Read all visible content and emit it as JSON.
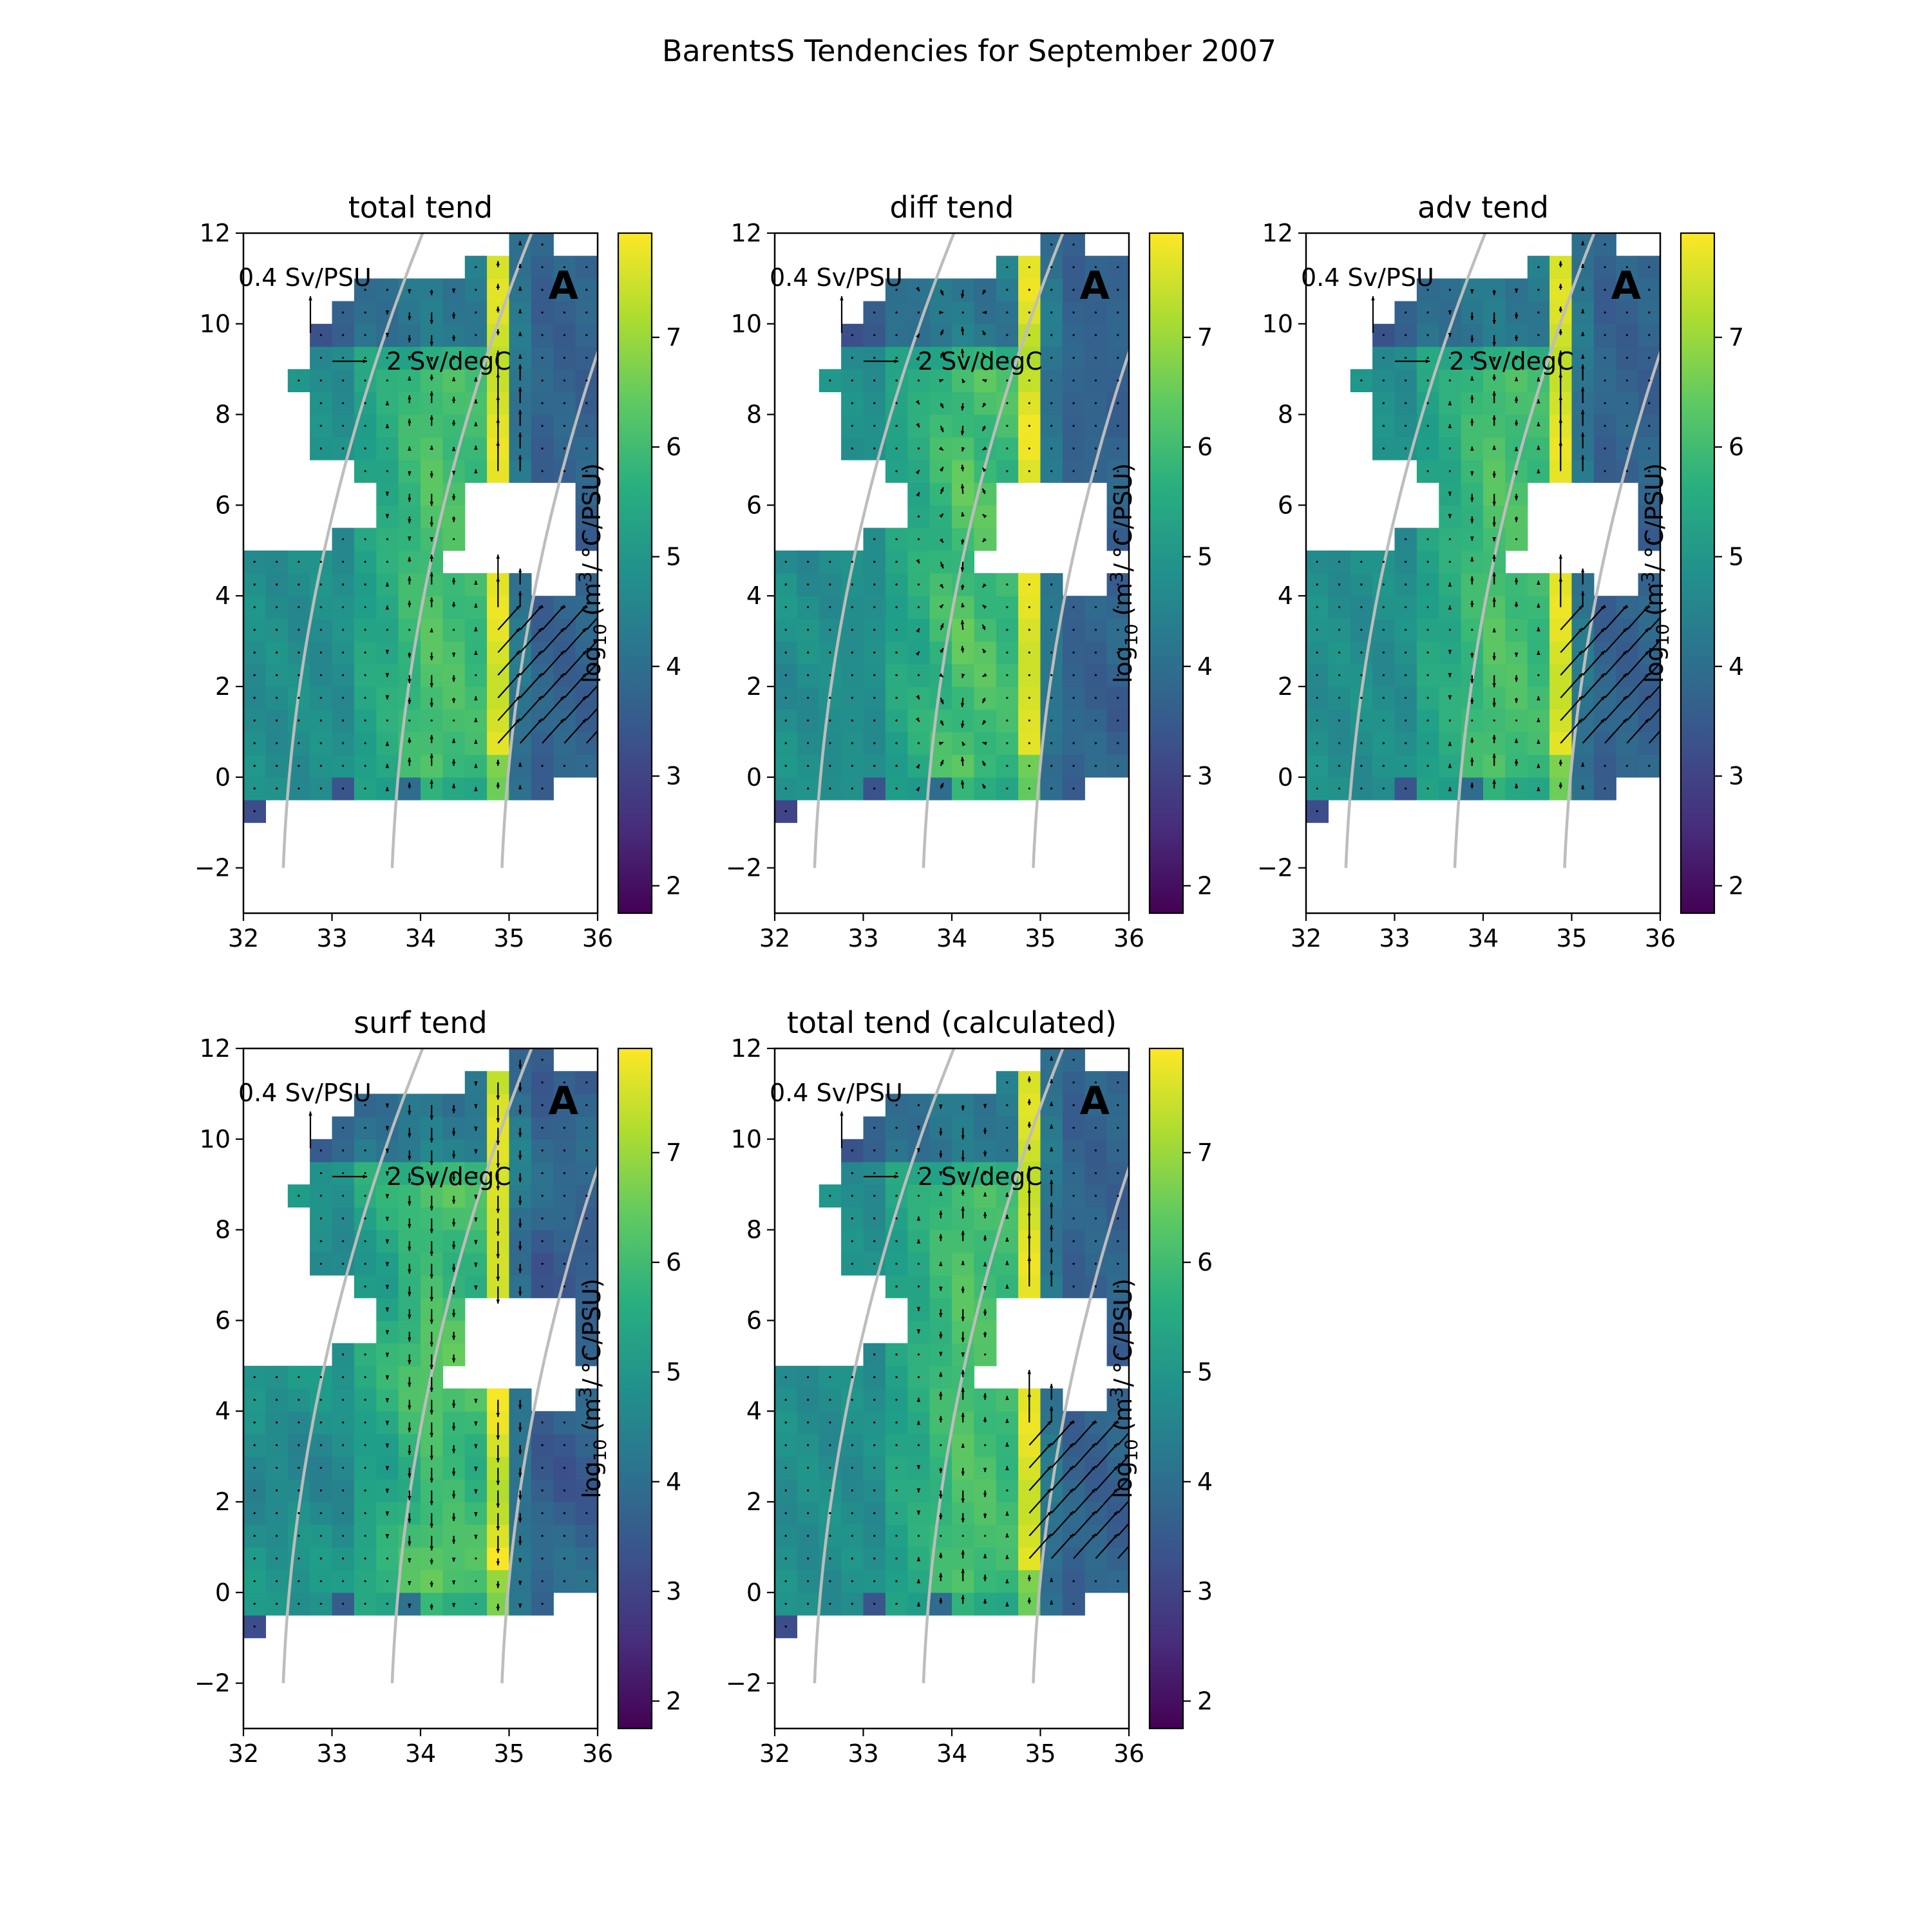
{
  "figure": {
    "suptitle": "BarentsS Tendencies for September 2007"
  },
  "shared": {
    "xlim": [
      32,
      36
    ],
    "ylim": [
      -3,
      12
    ],
    "xticks": [
      "32",
      "33",
      "34",
      "35",
      "36"
    ],
    "yticks": [
      "−2",
      "0",
      "2",
      "4",
      "6",
      "8",
      "10",
      "12"
    ],
    "cb_range": [
      1.75,
      7.95
    ],
    "cb_ticks": [
      "2",
      "3",
      "4",
      "5",
      "6",
      "7"
    ],
    "cb_label_prefix": "log",
    "cb_label_sub": "10",
    "cb_label_mid": " (m",
    "cb_label_sup": "3",
    "cb_label_suffix": "/ °C/PSU)",
    "ref_arrow_y_label": "0.4 Sv/PSU",
    "ref_arrow_x_label": "2 Sv/degC",
    "panel_marker": "A",
    "colormap": "viridis"
  },
  "chart_data": [
    {
      "type": "heatmap",
      "title": "total tend",
      "field": "total"
    },
    {
      "type": "heatmap",
      "title": "diff tend",
      "field": "diff"
    },
    {
      "type": "heatmap",
      "title": "adv tend",
      "field": "adv"
    },
    {
      "type": "heatmap",
      "title": "surf tend",
      "field": "surf"
    },
    {
      "type": "heatmap",
      "title": "total tend (calculated)",
      "field": "calc"
    }
  ]
}
